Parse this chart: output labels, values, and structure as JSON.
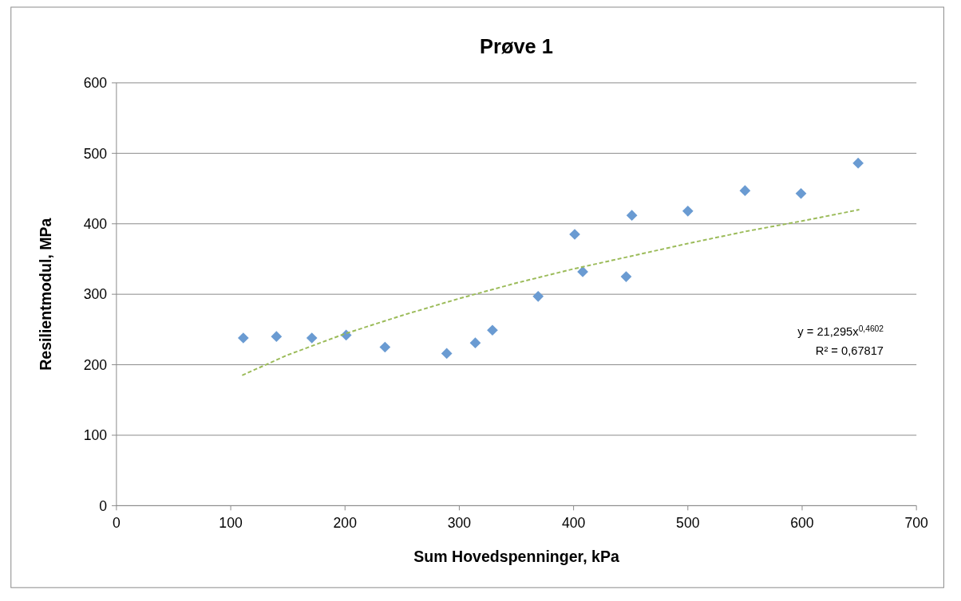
{
  "chart_data": {
    "type": "scatter",
    "title": "Prøve 1",
    "xlabel": "Sum Hovedspenninger, kPa",
    "ylabel": "Resilientmodul, MPa",
    "xlim": [
      0,
      700
    ],
    "xticks": [
      0,
      100,
      200,
      300,
      400,
      500,
      600,
      700
    ],
    "ylim": [
      0,
      600
    ],
    "yticks": [
      0,
      100,
      200,
      300,
      400,
      500,
      600
    ],
    "grid": "y",
    "marker": "diamond",
    "annotations": [
      "y = 21,295x$^{0,4602}$",
      "R² = 0,67817"
    ],
    "series": [
      {
        "color": "#6a9bd2",
        "x": [
          111,
          140,
          171,
          201,
          235,
          289,
          314,
          329,
          369,
          401,
          408,
          446,
          451,
          500,
          550,
          599,
          649
        ],
        "values": [
          238,
          240,
          238,
          242,
          225,
          216,
          231,
          249,
          297,
          385,
          332,
          325,
          412,
          418,
          447,
          443,
          486
        ]
      },
      {
        "type": "line",
        "line_style": "dashed",
        "marker": "none",
        "color": "#9bbb59",
        "x": [
          110,
          150,
          200,
          250,
          300,
          350,
          400,
          450,
          500,
          550,
          600,
          650
        ],
        "values": [
          185,
          214,
          244,
          270,
          294,
          316,
          336,
          354,
          372,
          389,
          404,
          420
        ]
      }
    ]
  }
}
